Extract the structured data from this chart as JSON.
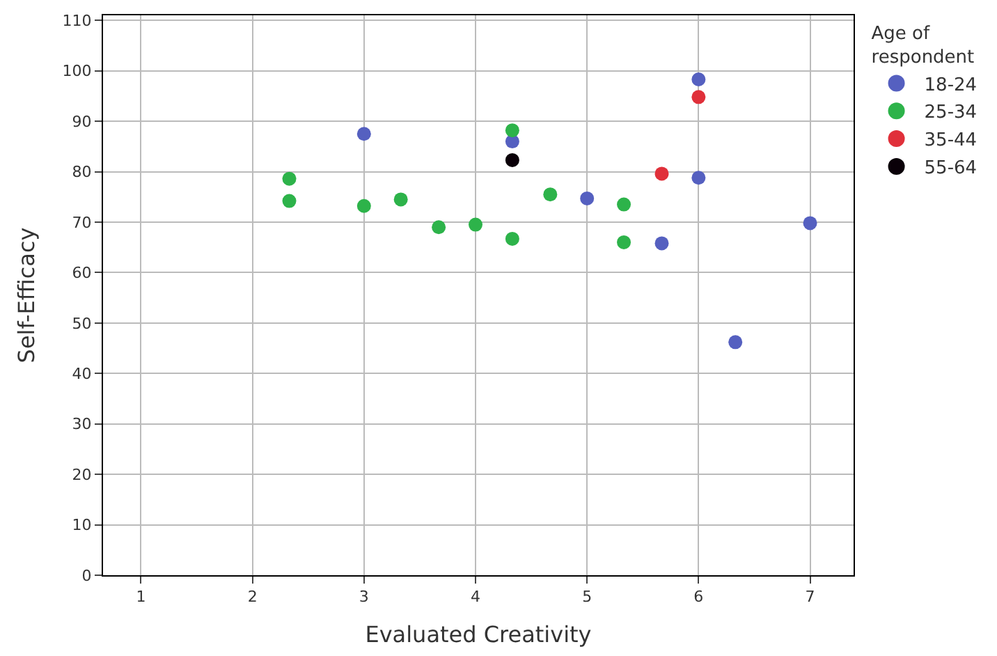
{
  "chart_data": {
    "type": "scatter",
    "xlabel": "Evaluated Creativity",
    "ylabel": "Self-Efficacy",
    "legend_title": "Age of\nrespondent",
    "xlim": [
      0.66,
      7.39
    ],
    "xticks": [
      1,
      2,
      3,
      4,
      5,
      6,
      7
    ],
    "ylim": [
      0,
      111
    ],
    "yticks": [
      0,
      10,
      20,
      30,
      40,
      50,
      60,
      70,
      80,
      90,
      100,
      110
    ],
    "grid": true,
    "legend": "right",
    "marker": "circle",
    "series": [
      {
        "name": "18-24",
        "color": "#5560c0",
        "x": [
          3,
          4.33,
          5,
          5.67,
          6,
          6,
          6.33,
          7
        ],
        "values": [
          87.5,
          86,
          74.7,
          65.8,
          98.3,
          78.8,
          46.2,
          69.8
        ]
      },
      {
        "name": "25-34",
        "color": "#2db34a",
        "x": [
          2.33,
          2.33,
          3,
          3.33,
          3.67,
          4,
          4.33,
          4.33,
          4.67,
          5.33,
          5.33
        ],
        "values": [
          78.6,
          74.2,
          73.2,
          74.5,
          69,
          69.5,
          88.2,
          66.7,
          75.5,
          73.5,
          66
        ]
      },
      {
        "name": "35-44",
        "color": "#e0303a",
        "x": [
          5.67,
          6
        ],
        "values": [
          79.6,
          94.8
        ]
      },
      {
        "name": "55-64",
        "color": "#0a0008",
        "x": [
          4.33
        ],
        "values": [
          82.3
        ]
      }
    ]
  }
}
